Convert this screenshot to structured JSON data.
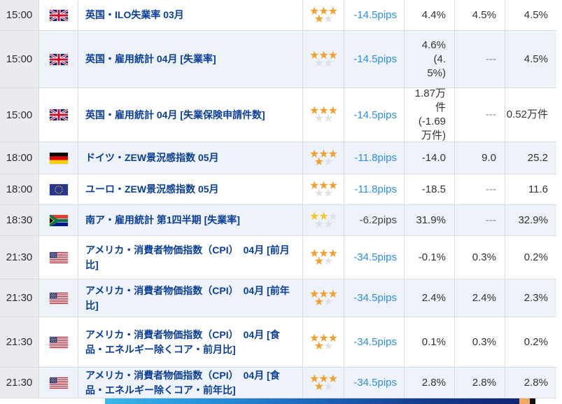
{
  "colors": {
    "accent_link": "#2e8de5",
    "event_text": "#0b3e96",
    "star_filled_orange": "#f0a02f",
    "star_filled_yellow": "#f6c52e",
    "star_empty": "#dde2ea",
    "row_alt_bg": "#edf3f8",
    "time_col_bg": "#eaeaef",
    "banner_orange": "#f2a963",
    "banner_black": "#111111"
  },
  "table": {
    "rows": [
      {
        "time": "15:00",
        "country": "gb",
        "event": "英国・ILO失業率 03月",
        "stars": 4,
        "star_color": "orange",
        "pips": "-14.5pips",
        "pips_is_link": true,
        "previous": "4.4%",
        "forecast": "4.5%",
        "result": "4.5%"
      },
      {
        "time": "15:00",
        "country": "gb",
        "event": "英国・雇用統計 04月 [失業率]",
        "stars": 3,
        "star_color": "orange",
        "pips": "-14.5pips",
        "pips_is_link": true,
        "previous": "4.6%\n(4.\n5%)",
        "forecast": "---",
        "result": "4.5%"
      },
      {
        "time": "15:00",
        "country": "gb",
        "event": "英国・雇用統計 04月 [失業保険申請件数]",
        "stars": 3,
        "star_color": "orange",
        "pips": "-14.5pips",
        "pips_is_link": true,
        "previous": "1.87万件\n(-1.69\n万件)",
        "forecast": "---",
        "result": "0.52万件"
      },
      {
        "time": "18:00",
        "country": "de",
        "event": "ドイツ・ZEW景況感指数 05月",
        "stars": 4,
        "star_color": "orange",
        "pips": "-11.8pips",
        "pips_is_link": true,
        "previous": "-14.0",
        "forecast": "9.0",
        "result": "25.2"
      },
      {
        "time": "18:00",
        "country": "eu",
        "event": "ユーロ・ZEW景況感指数 05月",
        "stars": 3,
        "star_color": "orange",
        "pips": "-11.8pips",
        "pips_is_link": true,
        "previous": "-18.5",
        "forecast": "---",
        "result": "11.6"
      },
      {
        "time": "18:30",
        "country": "za",
        "event": "南ア・雇用統計 第1四半期 [失業率]",
        "stars": 2,
        "star_color": "yellow",
        "pips": "-6.2pips",
        "pips_is_link": false,
        "previous": "31.9%",
        "forecast": "---",
        "result": "32.9%"
      },
      {
        "time": "21:30",
        "country": "us",
        "event": "アメリカ・消費者物価指数（CPI）　04月 [前月比]",
        "stars": 4,
        "star_color": "orange",
        "pips": "-34.5pips",
        "pips_is_link": true,
        "previous": "-0.1%",
        "forecast": "0.3%",
        "result": "0.2%"
      },
      {
        "time": "21:30",
        "country": "us",
        "event": "アメリカ・消費者物価指数（CPI）　04月 [前年比]",
        "stars": 4,
        "star_color": "orange",
        "pips": "-34.5pips",
        "pips_is_link": true,
        "previous": "2.4%",
        "forecast": "2.4%",
        "result": "2.3%"
      },
      {
        "time": "21:30",
        "country": "us",
        "event": "アメリカ・消費者物価指数（CPI）　04月 [食品・エネルギー除くコア・前月比]",
        "stars": 4,
        "star_color": "orange",
        "pips": "-34.5pips",
        "pips_is_link": true,
        "previous": "0.1%",
        "forecast": "0.3%",
        "result": "0.2%"
      },
      {
        "time": "21:30",
        "country": "us",
        "event": "アメリカ・消費者物価指数（CPI）　04月 [食品・エネルギー除くコア・前年比]",
        "stars": 4,
        "star_color": "orange",
        "pips": "-34.5pips",
        "pips_is_link": true,
        "previous": "2.8%",
        "forecast": "2.8%",
        "result": "2.8%"
      }
    ]
  }
}
